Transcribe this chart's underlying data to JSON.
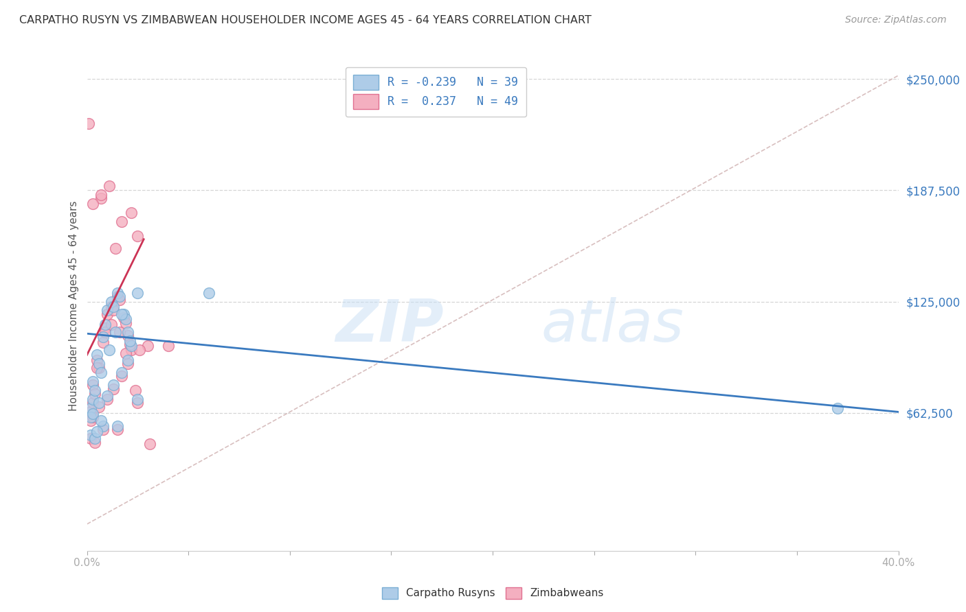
{
  "title": "CARPATHO RUSYN VS ZIMBABWEAN HOUSEHOLDER INCOME AGES 45 - 64 YEARS CORRELATION CHART",
  "source": "Source: ZipAtlas.com",
  "ylabel": "Householder Income Ages 45 - 64 years",
  "xlim": [
    0.0,
    0.4
  ],
  "ylim": [
    -15000,
    260000
  ],
  "yticks": [
    62500,
    125000,
    187500,
    250000
  ],
  "ytick_labels": [
    "$62,500",
    "$125,000",
    "$187,500",
    "$250,000"
  ],
  "xticks": [
    0.0,
    0.05,
    0.1,
    0.15,
    0.2,
    0.25,
    0.3,
    0.35,
    0.4
  ],
  "xtick_labels": [
    "0.0%",
    "",
    "",
    "",
    "",
    "",
    "",
    "",
    "40.0%"
  ],
  "background_color": "#ffffff",
  "grid_color": "#cccccc",
  "carpatho_color": "#aecce8",
  "zimbabwe_color": "#f4afc0",
  "carpatho_edge": "#7aaed4",
  "zimbabwe_edge": "#e07090",
  "blue_line_color": "#3a7abf",
  "pink_line_color": "#cc3355",
  "diag_line_color": "#d4b8b8",
  "legend_text_color": "#3a7abf",
  "title_color": "#333333",
  "source_color": "#999999",
  "ylabel_color": "#555555",
  "tick_color": "#aaaaaa",
  "carpatho_scatter_x": [
    0.002,
    0.003,
    0.005,
    0.008,
    0.01,
    0.012,
    0.015,
    0.018,
    0.02,
    0.022,
    0.003,
    0.006,
    0.009,
    0.013,
    0.016,
    0.019,
    0.007,
    0.011,
    0.014,
    0.017,
    0.004,
    0.021,
    0.025,
    0.06,
    0.002,
    0.003,
    0.006,
    0.01,
    0.013,
    0.017,
    0.02,
    0.37,
    0.008,
    0.015,
    0.025,
    0.002,
    0.004,
    0.005,
    0.007
  ],
  "carpatho_scatter_y": [
    65000,
    70000,
    95000,
    105000,
    120000,
    125000,
    130000,
    118000,
    108000,
    100000,
    80000,
    90000,
    112000,
    122000,
    128000,
    115000,
    85000,
    98000,
    108000,
    118000,
    75000,
    103000,
    130000,
    130000,
    60000,
    62000,
    68000,
    72000,
    78000,
    85000,
    92000,
    65000,
    55000,
    55000,
    70000,
    50000,
    48000,
    52000,
    58000
  ],
  "zimbabwe_scatter_x": [
    0.002,
    0.003,
    0.005,
    0.008,
    0.01,
    0.012,
    0.015,
    0.018,
    0.02,
    0.022,
    0.003,
    0.006,
    0.009,
    0.013,
    0.016,
    0.019,
    0.007,
    0.011,
    0.025,
    0.03,
    0.004,
    0.021,
    0.002,
    0.003,
    0.006,
    0.01,
    0.013,
    0.017,
    0.02,
    0.008,
    0.015,
    0.025,
    0.04,
    0.002,
    0.004,
    0.014,
    0.017,
    0.022,
    0.003,
    0.007,
    0.009,
    0.012,
    0.016,
    0.019,
    0.005,
    0.024,
    0.001,
    0.026,
    0.031
  ],
  "zimbabwe_scatter_y": [
    63000,
    68000,
    92000,
    102000,
    118000,
    122000,
    128000,
    116000,
    106000,
    98000,
    78000,
    88000,
    110000,
    120000,
    126000,
    113000,
    183000,
    190000,
    162000,
    100000,
    73000,
    101000,
    58000,
    60000,
    66000,
    70000,
    76000,
    83000,
    90000,
    53000,
    53000,
    68000,
    100000,
    48000,
    46000,
    155000,
    170000,
    175000,
    180000,
    185000,
    108000,
    112000,
    108000,
    96000,
    88000,
    75000,
    225000,
    98000,
    45000
  ],
  "blue_line_x": [
    0.0,
    0.4
  ],
  "blue_line_y": [
    107000,
    63000
  ],
  "pink_line_x": [
    0.0,
    0.028
  ],
  "pink_line_y": [
    95000,
    160000
  ],
  "diag_line_x": [
    0.0,
    0.4
  ],
  "diag_line_y": [
    0,
    252000
  ]
}
